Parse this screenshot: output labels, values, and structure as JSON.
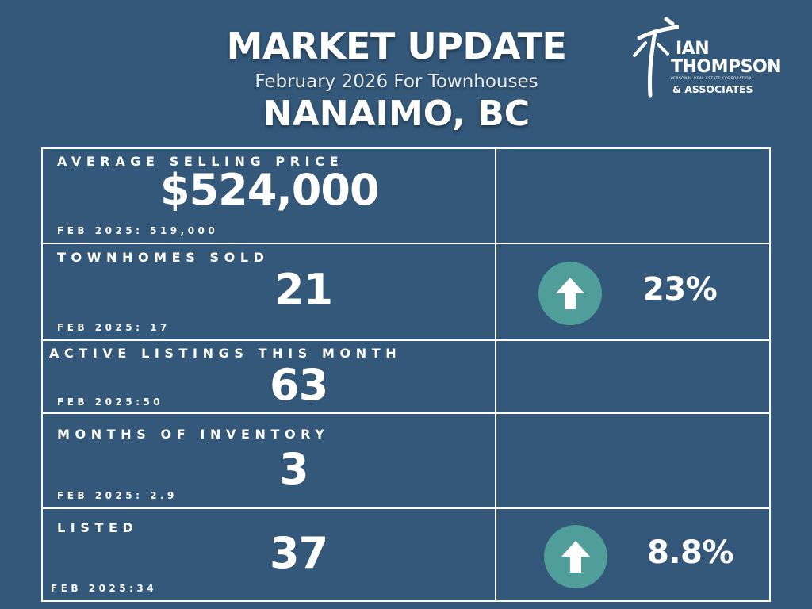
{
  "header": {
    "title": "MARKET UPDATE",
    "subtitle": "February 2026 For Townhouses",
    "location": "NANAIMO, BC"
  },
  "logo": {
    "line1": "IAN",
    "line2": "THOMPSON",
    "tagline": "PERSONAL REAL ESTATE CORPORATION",
    "line3": "& ASSOCIATES"
  },
  "rows": [
    {
      "label": "AVERAGE SELLING PRICE",
      "value": "$524,000",
      "previous": "FEB 2025: 519,000"
    },
    {
      "label": "TOWNHOMES SOLD",
      "value": "21",
      "previous": "FEB 2025: 17",
      "change": "23%",
      "trend_icon": "arrow-up-icon"
    },
    {
      "label": "ACTIVE LISTINGS THIS MONTH",
      "value": "63",
      "previous": "FEB 2025:50"
    },
    {
      "label": "MONTHS OF INVENTORY",
      "value": "3",
      "previous": "FEB 2025: 2.9"
    },
    {
      "label": "LISTED",
      "value": "37",
      "previous": "FEB 2025:34",
      "change": "8.8%",
      "trend_icon": "arrow-up-icon"
    }
  ],
  "colors": {
    "background": "#335879",
    "accent_circle": "#4f9e99",
    "text": "#ffffff"
  }
}
